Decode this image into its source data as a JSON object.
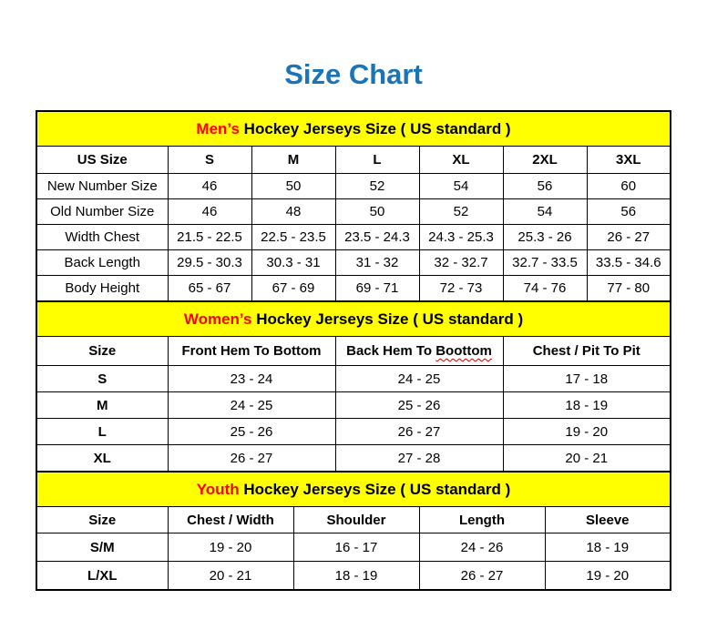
{
  "page": {
    "title": "Size Chart"
  },
  "colors": {
    "title_blue": "#1b74b8",
    "band_yellow": "#ffff00",
    "highlight_red": "#ff0000",
    "squiggle_red": "#d40000",
    "border_black": "#000000"
  },
  "tables": [
    {
      "id": "mens",
      "caption": {
        "highlight": "Men’s",
        "rest": " Hockey Jerseys Size ( US standard )"
      },
      "bold_row_labels": false,
      "header": [
        "US Size",
        "S",
        "M",
        "L",
        "XL",
        "2XL",
        "3XL"
      ],
      "rows": [
        [
          "New Number Size",
          "46",
          "50",
          "52",
          "54",
          "56",
          "60"
        ],
        [
          "Old Number Size",
          "46",
          "48",
          "50",
          "52",
          "54",
          "56"
        ],
        [
          "Width Chest",
          "21.5 - 22.5",
          "22.5 - 23.5",
          "23.5 - 24.3",
          "24.3 - 25.3",
          "25.3 - 26",
          "26 - 27"
        ],
        [
          "Back Length",
          "29.5 - 30.3",
          "30.3 - 31",
          "31 - 32",
          "32 - 32.7",
          "32.7 - 33.5",
          "33.5 - 34.6"
        ],
        [
          "Body Height",
          "65 - 67",
          "67 - 69",
          "69 - 71",
          "72 - 73",
          "74 - 76",
          "77 - 80"
        ]
      ]
    },
    {
      "id": "womens",
      "caption": {
        "highlight": "Women’s",
        "rest": " Hockey Jerseys Size ( US standard )"
      },
      "bold_row_labels": true,
      "header": [
        "Size",
        "Front Hem To Bottom",
        "Back Hem To Boottom",
        "Chest / Pit To Pit"
      ],
      "misspelling": {
        "col": 2,
        "before": "Back Hem To ",
        "word": "Boottom"
      },
      "rows": [
        [
          "S",
          "23 - 24",
          "24 - 25",
          "17 - 18"
        ],
        [
          "M",
          "24 - 25",
          "25 - 26",
          "18 - 19"
        ],
        [
          "L",
          "25 - 26",
          "26 - 27",
          "19 - 20"
        ],
        [
          "XL",
          "26 - 27",
          "27 - 28",
          "20 - 21"
        ]
      ]
    },
    {
      "id": "youth",
      "caption": {
        "highlight": "Youth",
        "rest": " Hockey Jerseys Size ( US standard )"
      },
      "bold_row_labels": true,
      "header": [
        "Size",
        "Chest / Width",
        "Shoulder",
        "Length",
        "Sleeve"
      ],
      "rows": [
        [
          "S/M",
          "19 - 20",
          "16 - 17",
          "24 - 26",
          "18 - 19"
        ],
        [
          "L/XL",
          "20 - 21",
          "18 - 19",
          "26 - 27",
          "19 - 20"
        ]
      ]
    }
  ]
}
